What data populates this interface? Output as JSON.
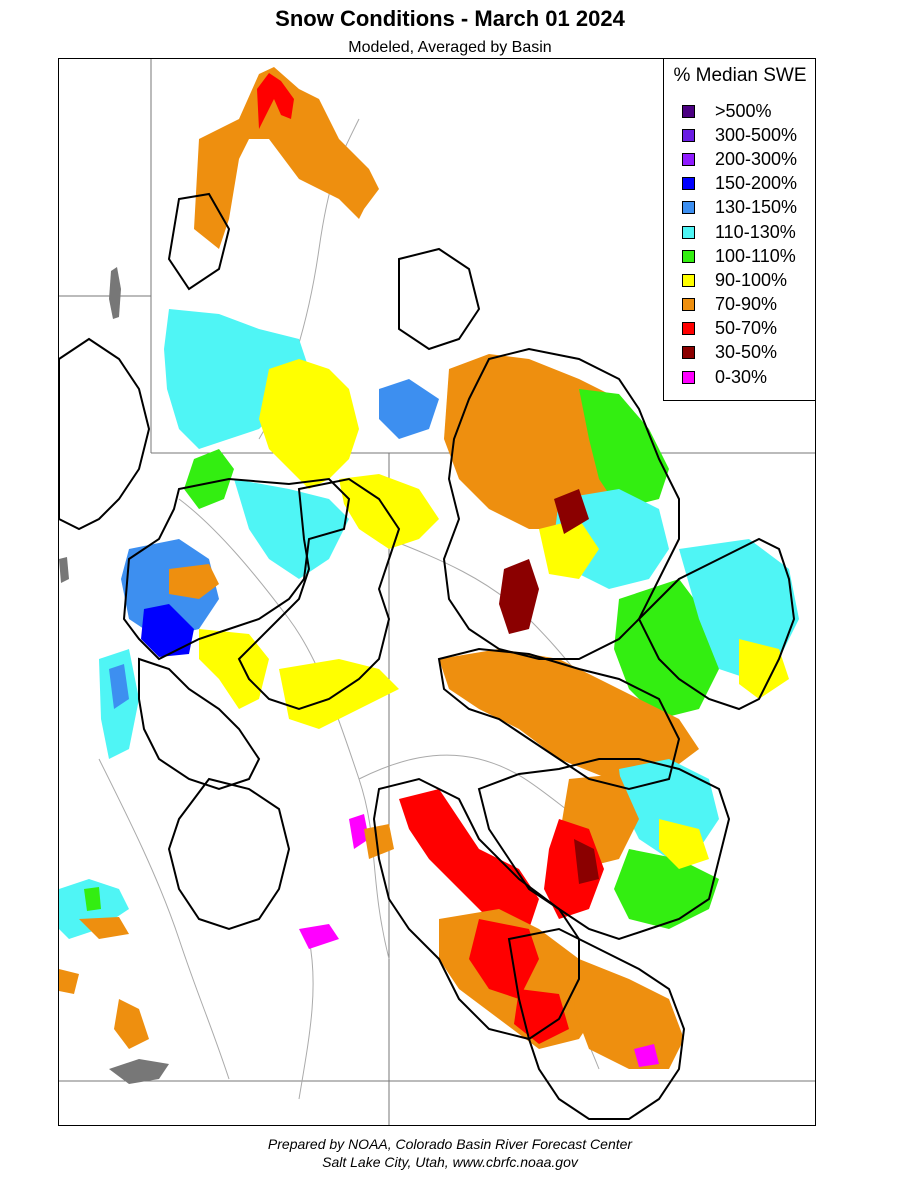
{
  "title": "Snow Conditions - March 01 2024",
  "subtitle": "Modeled, Averaged by Basin",
  "legend": {
    "title": "% Median SWE",
    "items": [
      {
        "label": ">500%",
        "color": "#4b0082"
      },
      {
        "label": "300-500%",
        "color": "#6a1de3"
      },
      {
        "label": "200-300%",
        "color": "#8f1cff"
      },
      {
        "label": "150-200%",
        "color": "#0000ff"
      },
      {
        "label": "130-150%",
        "color": "#3d8ff0"
      },
      {
        "label": "110-130%",
        "color": "#4ff5f5"
      },
      {
        "label": "100-110%",
        "color": "#33ee11"
      },
      {
        "label": "90-100%",
        "color": "#ffff00"
      },
      {
        "label": "70-90%",
        "color": "#ee8f0f"
      },
      {
        "label": "50-70%",
        "color": "#ff0000"
      },
      {
        "label": "30-50%",
        "color": "#8b0000"
      },
      {
        "label": "0-30%",
        "color": "#ff00ff"
      }
    ]
  },
  "footer": {
    "line1": "Prepared by NOAA, Colorado Basin River Forecast Center",
    "line2": "Salt Lake City, Utah, www.cbrfc.noaa.gov"
  }
}
